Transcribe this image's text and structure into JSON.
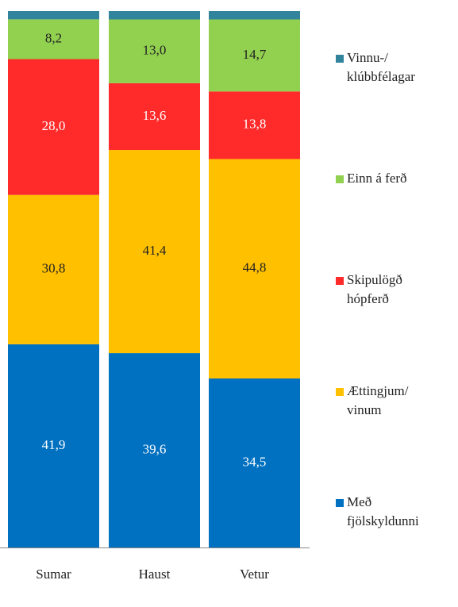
{
  "chart_data": {
    "type": "bar",
    "stacked": "percent",
    "categories": [
      "Sumar",
      "Haust",
      "Vetur"
    ],
    "series": [
      {
        "name": "Með\nfjölskyldunni",
        "color": "#0070c0",
        "label_color": "#ffffff",
        "values": [
          41.9,
          39.6,
          34.5
        ],
        "value_labels": [
          "41,9",
          "39,6",
          "34,5"
        ]
      },
      {
        "name": "Ættingjum/\nvinum",
        "color": "#ffc000",
        "label_color": "#222222",
        "values": [
          30.8,
          41.4,
          44.8
        ],
        "value_labels": [
          "30,8",
          "41,4",
          "44,8"
        ]
      },
      {
        "name": "Skipulögð\nhópferð",
        "color": "#ff2a2a",
        "label_color": "#ffffff",
        "values": [
          28.0,
          13.6,
          13.8
        ],
        "value_labels": [
          "28,0",
          "13,6",
          "13,8"
        ]
      },
      {
        "name": "Einn á ferð",
        "color": "#92d050",
        "label_color": "#222222",
        "values": [
          8.2,
          13.0,
          14.7
        ],
        "value_labels": [
          "8,2",
          "13,0",
          "14,7"
        ]
      },
      {
        "name": "Vinnu-/\nklúbbfélagar",
        "color": "#31849b",
        "values": [
          1.7,
          1.7,
          1.7
        ]
      }
    ]
  }
}
